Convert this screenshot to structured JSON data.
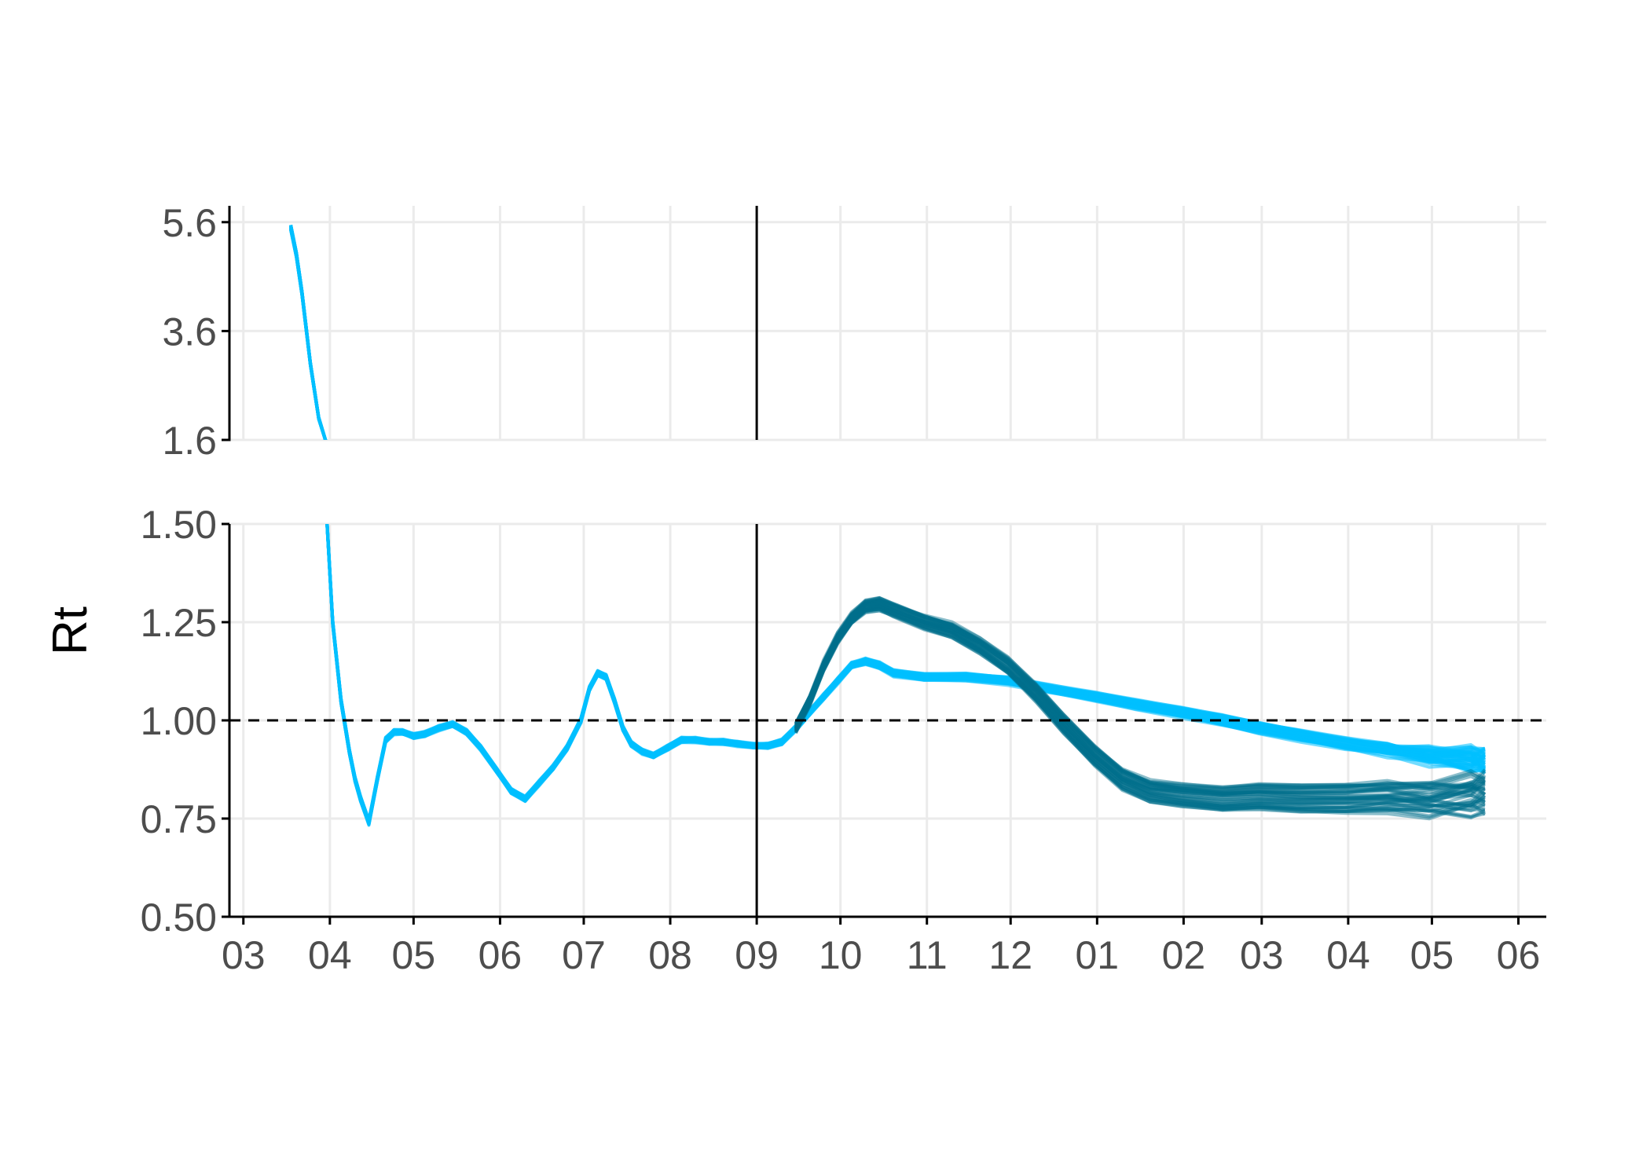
{
  "chart_data": {
    "type": "line",
    "title": "",
    "ylabel": "Rt",
    "xlabel": "",
    "x_domain": [
      "2020-03",
      "2021-06"
    ],
    "x_ticks": [
      "03",
      "04",
      "05",
      "06",
      "07",
      "08",
      "09",
      "10",
      "11",
      "12",
      "01",
      "02",
      "03",
      "04",
      "05",
      "06"
    ],
    "grid": true,
    "legend": "none",
    "vline_x": "09",
    "reference_line": {
      "y": 1.0,
      "style": "dashed"
    },
    "panels": [
      {
        "name": "upper",
        "ylim": [
          1.6,
          5.9
        ],
        "y_ticks": [
          "5.6",
          "3.6",
          "1.6"
        ],
        "y_tick_values": [
          5.6,
          3.6,
          1.6
        ]
      },
      {
        "name": "lower",
        "ylim": [
          0.5,
          1.5
        ],
        "y_ticks": [
          "1.50",
          "1.25",
          "1.00",
          "0.75",
          "0.50"
        ],
        "y_tick_values": [
          1.5,
          1.25,
          1.0,
          0.75,
          0.5
        ]
      }
    ],
    "colors": {
      "light": "#00bfff",
      "dark": "#006e8c",
      "grid": "#ebebeb",
      "axis": "#000000"
    },
    "series": [
      {
        "color": "light",
        "ensemble": 40,
        "x": [
          "2020-03-18",
          "2020-03-20",
          "2020-03-22",
          "2020-03-25",
          "2020-03-28",
          "2020-03-31",
          "2020-04-02",
          "2020-04-05",
          "2020-04-08",
          "2020-04-10",
          "2020-04-12",
          "2020-04-15",
          "2020-04-18",
          "2020-04-21",
          "2020-04-24",
          "2020-04-27",
          "2020-05-01",
          "2020-05-05",
          "2020-05-10",
          "2020-05-15",
          "2020-05-20",
          "2020-05-25",
          "2020-05-31",
          "2020-06-05",
          "2020-06-10",
          "2020-06-15",
          "2020-06-20",
          "2020-06-25",
          "2020-06-30",
          "2020-07-03",
          "2020-07-06",
          "2020-07-09",
          "2020-07-12",
          "2020-07-15",
          "2020-07-18",
          "2020-07-22",
          "2020-07-26",
          "2020-07-31",
          "2020-08-05",
          "2020-08-10",
          "2020-08-15",
          "2020-08-20",
          "2020-08-25",
          "2020-08-31",
          "2020-09-05",
          "2020-09-10",
          "2020-09-15",
          "2020-09-20",
          "2020-09-25",
          "2020-09-30",
          "2020-10-05",
          "2020-10-10",
          "2020-10-15",
          "2020-10-20",
          "2020-10-31",
          "2020-11-15",
          "2020-11-30",
          "2020-12-15",
          "2020-12-31",
          "2021-01-15",
          "2021-01-31",
          "2021-02-15",
          "2021-02-28",
          "2021-03-15",
          "2021-03-31",
          "2021-04-15",
          "2021-04-30",
          "2021-05-15",
          "2021-05-20"
        ],
        "y": [
          5.5,
          5.0,
          4.3,
          3.0,
          2.0,
          1.5,
          1.25,
          1.05,
          0.92,
          0.85,
          0.8,
          0.74,
          0.85,
          0.95,
          0.97,
          0.97,
          0.96,
          0.965,
          0.98,
          0.99,
          0.97,
          0.93,
          0.87,
          0.82,
          0.8,
          0.84,
          0.88,
          0.93,
          1.0,
          1.08,
          1.12,
          1.11,
          1.05,
          0.98,
          0.94,
          0.92,
          0.91,
          0.93,
          0.95,
          0.95,
          0.945,
          0.945,
          0.94,
          0.935,
          0.935,
          0.945,
          0.98,
          1.02,
          1.06,
          1.1,
          1.14,
          1.15,
          1.14,
          1.12,
          1.11,
          1.11,
          1.1,
          1.08,
          1.06,
          1.04,
          1.02,
          1.0,
          0.98,
          0.96,
          0.94,
          0.925,
          0.91,
          0.9,
          0.895
        ]
      },
      {
        "color": "dark",
        "ensemble": 40,
        "x": [
          "2020-09-15",
          "2020-09-20",
          "2020-09-25",
          "2020-09-30",
          "2020-10-05",
          "2020-10-10",
          "2020-10-15",
          "2020-10-20",
          "2020-10-31",
          "2020-11-10",
          "2020-11-20",
          "2020-11-30",
          "2020-12-10",
          "2020-12-20",
          "2020-12-31",
          "2021-01-10",
          "2021-01-20",
          "2021-01-31",
          "2021-02-15",
          "2021-02-28",
          "2021-03-15",
          "2021-03-31",
          "2021-04-15",
          "2021-04-30",
          "2021-05-15",
          "2021-05-20"
        ],
        "y": [
          0.98,
          1.05,
          1.14,
          1.21,
          1.26,
          1.29,
          1.295,
          1.28,
          1.25,
          1.23,
          1.19,
          1.14,
          1.07,
          0.99,
          0.91,
          0.85,
          0.82,
          0.81,
          0.8,
          0.805,
          0.8,
          0.8,
          0.805,
          0.8,
          0.81,
          0.815
        ]
      }
    ]
  }
}
